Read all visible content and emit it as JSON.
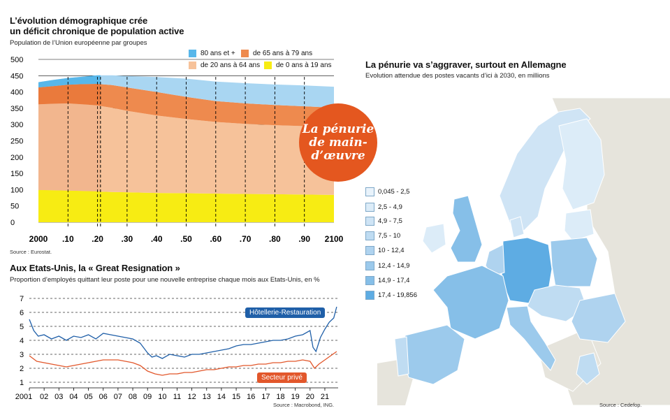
{
  "chart_data": [
    {
      "type": "area",
      "title": "L’évolution démographique crée un déficit chronique de population active",
      "subtitle": "Population de l’Union européenne par groupes",
      "source": "Source : Eurostat.",
      "x_tick_labels": [
        "2000",
        ".10",
        ".20",
        ".30",
        ".40",
        ".50",
        ".60",
        ".70",
        ".80",
        ".90",
        "2100"
      ],
      "y_ticks": [
        0,
        50,
        100,
        150,
        200,
        250,
        300,
        350,
        400,
        450,
        500
      ],
      "ylim": [
        0,
        500
      ],
      "xlim": [
        2000,
        2100
      ],
      "x": [
        2000,
        2005,
        2010,
        2015,
        2020,
        2021,
        2025,
        2030,
        2040,
        2050,
        2060,
        2070,
        2080,
        2090,
        2100
      ],
      "series": [
        {
          "name": "de 0 ans à 19 ans",
          "color": "#f7ec13",
          "values": [
            99,
            98,
            97,
            96,
            95,
            94,
            93,
            92,
            90,
            89,
            88,
            87,
            86,
            85,
            84
          ]
        },
        {
          "name": "de 20 ans à 64 ans",
          "color": "#f6c29a",
          "values": [
            263,
            266,
            268,
            266,
            264,
            263,
            258,
            250,
            238,
            228,
            220,
            215,
            212,
            210,
            208
          ]
        },
        {
          "name": "de 65 ans à 79 ans",
          "color": "#ee8a4e",
          "values": [
            52,
            54,
            57,
            62,
            66,
            67,
            70,
            72,
            72,
            68,
            64,
            63,
            62,
            61,
            60
          ]
        },
        {
          "name": "80 ans et +",
          "color": "#a9d6f2",
          "values": [
            16,
            19,
            21,
            23,
            26,
            27,
            30,
            35,
            46,
            56,
            60,
            62,
            63,
            64,
            64
          ]
        }
      ],
      "projection_start": 2021,
      "badge": [
        "La pénurie",
        "de main-",
        "d’œuvre"
      ],
      "legend": [
        "80 ans et +",
        "de 65 ans à 79 ans",
        "de 20 ans à 64 ans",
        "de 0 ans à 19 ans"
      ]
    },
    {
      "type": "line",
      "title": "Aux Etats-Unis, la « Great Resignation »",
      "subtitle": "Proportion d’employés quittant leur poste pour une nouvelle entreprise chaque mois aux Etats-Unis, en %",
      "source": "Source : Macrobond, ING.",
      "x_tick_labels": [
        "2001",
        "02",
        "03",
        "04",
        "05",
        "06",
        "07",
        "08",
        "09",
        "10",
        "11",
        "12",
        "13",
        "14",
        "15",
        "16",
        "17",
        "18",
        "19",
        "20",
        "21"
      ],
      "y_ticks": [
        1,
        2,
        3,
        4,
        5,
        6,
        7
      ],
      "ylim": [
        1,
        7
      ],
      "xlim": [
        2001,
        2021.9
      ],
      "series": [
        {
          "name": "Hôtellerie-Restauration",
          "color": "#1f5fa8",
          "x": [
            2001.0,
            2001.3,
            2001.6,
            2002.0,
            2002.5,
            2003.0,
            2003.5,
            2004.0,
            2004.5,
            2005.0,
            2005.5,
            2006.0,
            2006.5,
            2007.0,
            2007.5,
            2008.0,
            2008.5,
            2009.0,
            2009.3,
            2009.6,
            2010.0,
            2010.5,
            2011.0,
            2011.5,
            2012.0,
            2012.5,
            2013.0,
            2013.5,
            2014.0,
            2014.5,
            2015.0,
            2015.5,
            2016.0,
            2016.5,
            2017.0,
            2017.5,
            2018.0,
            2018.5,
            2019.0,
            2019.5,
            2020.0,
            2020.2,
            2020.4,
            2020.7,
            2021.0,
            2021.3,
            2021.6,
            2021.8
          ],
          "y": [
            5.5,
            4.7,
            4.3,
            4.4,
            4.1,
            4.3,
            4.0,
            4.3,
            4.2,
            4.4,
            4.1,
            4.5,
            4.4,
            4.3,
            4.2,
            4.1,
            3.8,
            3.1,
            2.8,
            2.9,
            2.7,
            3.0,
            2.9,
            2.8,
            3.0,
            3.0,
            3.1,
            3.2,
            3.3,
            3.4,
            3.6,
            3.7,
            3.7,
            3.8,
            3.9,
            4.0,
            4.0,
            4.1,
            4.3,
            4.4,
            4.7,
            3.5,
            3.2,
            4.2,
            4.8,
            5.3,
            5.6,
            6.4
          ]
        },
        {
          "name": "Secteur privé",
          "color": "#e2572b",
          "x": [
            2001.0,
            2001.5,
            2002.0,
            2002.5,
            2003.0,
            2003.5,
            2004.0,
            2004.5,
            2005.0,
            2005.5,
            2006.0,
            2006.5,
            2007.0,
            2007.5,
            2008.0,
            2008.5,
            2009.0,
            2009.5,
            2010.0,
            2010.5,
            2011.0,
            2011.5,
            2012.0,
            2012.5,
            2013.0,
            2013.5,
            2014.0,
            2014.5,
            2015.0,
            2015.5,
            2016.0,
            2016.5,
            2017.0,
            2017.5,
            2018.0,
            2018.5,
            2019.0,
            2019.5,
            2020.0,
            2020.3,
            2020.6,
            2021.0,
            2021.4,
            2021.8
          ],
          "y": [
            2.9,
            2.5,
            2.4,
            2.3,
            2.2,
            2.1,
            2.2,
            2.3,
            2.4,
            2.5,
            2.6,
            2.6,
            2.6,
            2.5,
            2.4,
            2.2,
            1.8,
            1.6,
            1.5,
            1.6,
            1.6,
            1.7,
            1.7,
            1.8,
            1.9,
            1.9,
            2.0,
            2.1,
            2.1,
            2.2,
            2.2,
            2.3,
            2.3,
            2.4,
            2.4,
            2.5,
            2.5,
            2.6,
            2.5,
            2.0,
            2.3,
            2.6,
            2.9,
            3.2
          ]
        }
      ]
    },
    {
      "type": "map",
      "title": "La pénurie va s’aggraver, surtout en Allemagne",
      "subtitle": "Evolution attendue des postes vacants d’ici à 2030, en millions",
      "source": "Source : Cedefop.",
      "legend": [
        {
          "label": "0,045 - 2,5",
          "color": "#e9f3fb"
        },
        {
          "label": "2,5 - 4,9",
          "color": "#dcecf8"
        },
        {
          "label": "4,9 - 7,5",
          "color": "#cfe4f5"
        },
        {
          "label": "7,5 - 10",
          "color": "#bfdcf2"
        },
        {
          "label": "10 - 12,4",
          "color": "#afd3ef"
        },
        {
          "label": "12,4 - 14,9",
          "color": "#9ccaec"
        },
        {
          "label": "14,9 - 17,4",
          "color": "#86bfe8"
        },
        {
          "label": "17,4 - 19,856",
          "color": "#5eace3"
        }
      ]
    }
  ],
  "text": {
    "pop_title_line1": "L’évolution démographique crée",
    "pop_title_line2": "un déficit chronique de population active",
    "pop_subtitle": "Population de l’Union européenne par groupes",
    "pop_source": "Source : Eurostat.",
    "us_title": "Aux Etats-Unis, la « Great Resignation »",
    "us_subtitle": "Proportion d’employés quittant leur poste pour une nouvelle entreprise chaque mois aux Etats-Unis, en %",
    "us_source": "Source : Macrobond, ING.",
    "map_title": "La pénurie va s’aggraver, surtout en Allemagne",
    "map_subtitle": "Evolution attendue des postes vacants d’ici à 2030, en millions",
    "map_source": "Source : Cedefop.",
    "leg_80": "80 ans et +",
    "leg_65": "de 65 ans à 79 ans",
    "leg_20": "de 20 ans à 64 ans",
    "leg_0": "de 0 ans à 19 ans",
    "hotel_label": "Hôtellerie-Restauration",
    "prive_label": "Secteur privé"
  },
  "colors": {
    "c80": "#58b7ea",
    "c65": "#ee8a4e",
    "c20": "#f6c29a",
    "c0": "#f7ec13",
    "badge": "#e4571f",
    "hotel": "#1f5fa8",
    "prive": "#e2572b",
    "land": "#e6e4dc",
    "sea": "#ffffff"
  }
}
